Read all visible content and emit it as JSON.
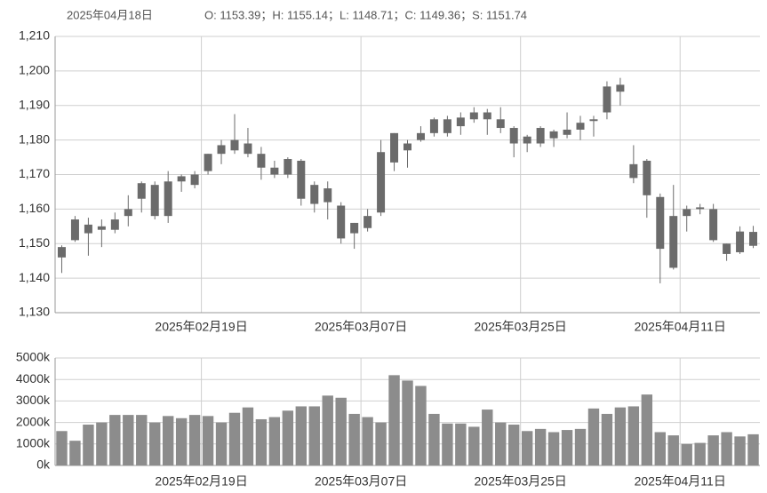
{
  "header": {
    "date": "2025年04月18日",
    "ohlc": "O: 1153.39；H: 1155.14；L: 1148.71；C: 1149.36；S: 1151.74"
  },
  "chart_data": [
    {
      "type": "candlestick",
      "color": "#6b6b6b",
      "categories": [
        null,
        null,
        null,
        null,
        null,
        null,
        null,
        null,
        null,
        null,
        null,
        "2025年02月19日",
        null,
        null,
        null,
        null,
        null,
        null,
        null,
        null,
        null,
        null,
        null,
        "2025年03月07日",
        null,
        null,
        null,
        null,
        null,
        null,
        null,
        null,
        null,
        null,
        null,
        "2025年03月25日",
        null,
        null,
        null,
        null,
        null,
        null,
        null,
        null,
        null,
        null,
        null,
        "2025年04月11日",
        null,
        null,
        null,
        null,
        null
      ],
      "open": [
        1149,
        1151,
        1155.5,
        1154,
        1154,
        1158,
        1163,
        1167,
        1158,
        1168,
        1167,
        1171,
        1176,
        1177,
        1179,
        1176,
        1172,
        1170,
        1174,
        1167,
        1166,
        1161,
        1153,
        1154.5,
        1159,
        1173.5,
        1177,
        1180,
        1182,
        1182,
        1184,
        1186,
        1188,
        1186,
        1183.5,
        1181,
        1179,
        1182.5,
        1181.5,
        1183,
        1185.5,
        1188,
        1194,
        1173,
        1174,
        1163.5,
        1158,
        1160,
        1160,
        1160,
        1147,
        1153.5,
        1153.39
      ],
      "high": [
        1149.5,
        1158,
        1157.5,
        1157,
        1159,
        1164,
        1168,
        1168,
        1171,
        1170,
        1171,
        1176,
        1180,
        1187.5,
        1183.5,
        1178,
        1174,
        1175,
        1174.5,
        1168,
        1168,
        1162,
        1156,
        1160,
        1180,
        1182,
        1180,
        1184,
        1186.5,
        1187,
        1188,
        1189.5,
        1189,
        1189.5,
        1184,
        1181.5,
        1184,
        1183,
        1188,
        1187,
        1187,
        1197,
        1198,
        1178.5,
        1174.5,
        1164.5,
        1167,
        1161,
        1161.5,
        1161.5,
        1150,
        1155,
        1155.14
      ],
      "low": [
        1141.5,
        1150.5,
        1146.5,
        1149,
        1153,
        1155,
        1159,
        1157,
        1156,
        1165,
        1166,
        1170,
        1173,
        1176,
        1175,
        1168.5,
        1169,
        1169,
        1161,
        1159,
        1157,
        1150,
        1148.5,
        1153.5,
        1158,
        1171,
        1172,
        1179.5,
        1181,
        1181,
        1181.5,
        1185,
        1181.5,
        1182,
        1175,
        1176.5,
        1178,
        1178,
        1180.5,
        1180,
        1181,
        1186,
        1190,
        1167.5,
        1157.5,
        1138.5,
        1142.5,
        1153.5,
        1158.5,
        1150.5,
        1145,
        1147,
        1148.71
      ],
      "close": [
        1146,
        1157,
        1153,
        1155,
        1157,
        1160,
        1167.5,
        1158,
        1168,
        1169.5,
        1170,
        1176,
        1178.5,
        1180,
        1176,
        1172,
        1170,
        1174.5,
        1163,
        1161.5,
        1162,
        1151.5,
        1156,
        1158,
        1176.5,
        1182,
        1179,
        1182,
        1186,
        1186,
        1186.5,
        1188,
        1186,
        1183.5,
        1179,
        1179,
        1183.5,
        1180.5,
        1183,
        1185,
        1186,
        1195.5,
        1196,
        1169,
        1164,
        1148.5,
        1143,
        1158,
        1160.5,
        1151,
        1150,
        1147.5,
        1149.36
      ],
      "ylim": [
        1130,
        1210
      ],
      "yticks": [
        {
          "value": 1130,
          "label": "1,130"
        },
        {
          "value": 1140,
          "label": "1,140"
        },
        {
          "value": 1150,
          "label": "1,150"
        },
        {
          "value": 1160,
          "label": "1,160"
        },
        {
          "value": 1170,
          "label": "1,170"
        },
        {
          "value": 1180,
          "label": "1,180"
        },
        {
          "value": 1190,
          "label": "1,190"
        },
        {
          "value": 1200,
          "label": "1,200"
        },
        {
          "value": 1210,
          "label": "1,210"
        }
      ],
      "grid": true
    },
    {
      "type": "bar",
      "color": "#8c8c8c",
      "categories": [
        null,
        null,
        null,
        null,
        null,
        null,
        null,
        null,
        null,
        null,
        null,
        "2025年02月19日",
        null,
        null,
        null,
        null,
        null,
        null,
        null,
        null,
        null,
        null,
        null,
        "2025年03月07日",
        null,
        null,
        null,
        null,
        null,
        null,
        null,
        null,
        null,
        null,
        null,
        "2025年03月25日",
        null,
        null,
        null,
        null,
        null,
        null,
        null,
        null,
        null,
        null,
        null,
        "2025年04月11日",
        null,
        null,
        null,
        null,
        null
      ],
      "values": [
        1600,
        1150,
        1900,
        2000,
        2350,
        2350,
        2350,
        2000,
        2300,
        2200,
        2350,
        2300,
        2000,
        2450,
        2700,
        2150,
        2250,
        2550,
        2750,
        2750,
        3250,
        3150,
        2400,
        2250,
        2000,
        4200,
        3950,
        3700,
        2400,
        1950,
        1950,
        1800,
        2600,
        2000,
        1900,
        1600,
        1700,
        1550,
        1650,
        1700,
        2650,
        2400,
        2700,
        2750,
        3300,
        1550,
        1400,
        1000,
        1050,
        1400,
        1550,
        1350,
        1450
      ],
      "ylim": [
        0,
        5000
      ],
      "yticks": [
        {
          "value": 0,
          "label": "0k"
        },
        {
          "value": 1000,
          "label": "1000k"
        },
        {
          "value": 2000,
          "label": "2000k"
        },
        {
          "value": 3000,
          "label": "3000k"
        },
        {
          "value": 4000,
          "label": "4000k"
        },
        {
          "value": 5000,
          "label": "5000k"
        }
      ],
      "grid": true
    }
  ]
}
